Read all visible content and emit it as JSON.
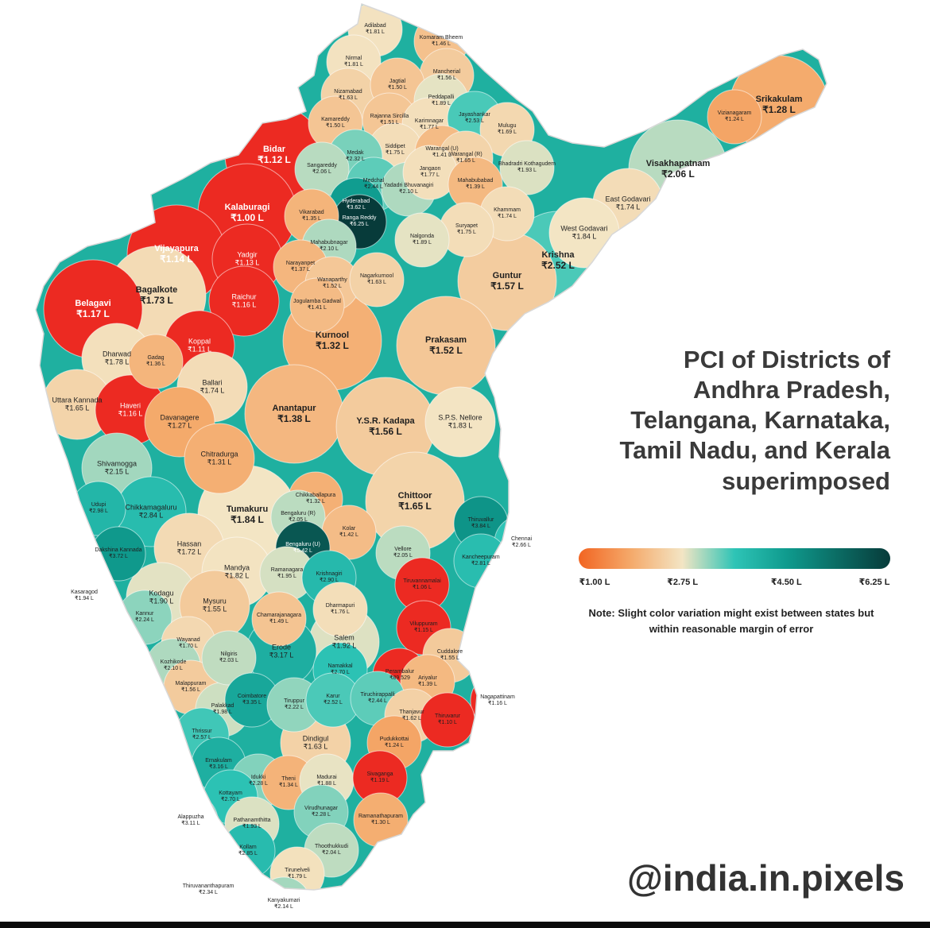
{
  "title_lines": [
    "PCI of Districts of",
    "Andhra Pradesh,",
    "Telangana, Karnataka,",
    "Tamil Nadu, and Kerala",
    "superimposed"
  ],
  "legend": {
    "ticks": [
      "₹1.00 L",
      "₹2.75 L",
      "₹4.50 L",
      "₹6.25 L"
    ],
    "tick_values": [
      1.0,
      2.75,
      4.5,
      6.25
    ],
    "min": 1.0,
    "max": 6.25,
    "colors": [
      "#f26522",
      "#f4a96a",
      "#f3e5c4",
      "#2ec4b6",
      "#0f9b8e",
      "#0b6b63",
      "#073b3a"
    ]
  },
  "note_lines": [
    "Note: Slight color variation might exist between states but",
    "within reasonable margin of error"
  ],
  "handle": "@india.in.pixels",
  "colors": {
    "land_base": "#1fb0a0",
    "outline": "#ffffff",
    "title": "#3a3a3a"
  },
  "districts": [
    {
      "name": "Adilabad",
      "value": "₹1.81 L",
      "pci": 1.81
    },
    {
      "name": "Komaram Bheem",
      "value": "₹1.46 L",
      "pci": 1.46
    },
    {
      "name": "Nirmal",
      "value": "₹1.81 L",
      "pci": 1.81
    },
    {
      "name": "Mancherial",
      "value": "₹1.56 L",
      "pci": 1.56
    },
    {
      "name": "Nizamabad",
      "value": "₹1.63 L",
      "pci": 1.63
    },
    {
      "name": "Jagtial",
      "value": "₹1.50 L",
      "pci": 1.5
    },
    {
      "name": "Peddapalli",
      "value": "₹1.89 L",
      "pci": 1.89
    },
    {
      "name": "Kamareddy",
      "value": "₹1.50 L",
      "pci": 1.5
    },
    {
      "name": "Rajanna Sircilla",
      "value": "₹1.51 L",
      "pci": 1.51
    },
    {
      "name": "Karimnagar",
      "value": "₹1.77 L",
      "pci": 1.77
    },
    {
      "name": "Jayashankar",
      "value": "₹2.53 L",
      "pci": 2.53
    },
    {
      "name": "Mulugu",
      "value": "₹1.69 L",
      "pci": 1.69
    },
    {
      "name": "Siddipet",
      "value": "₹1.75 L",
      "pci": 1.75
    },
    {
      "name": "Warangal (U)",
      "value": "₹1.41 L",
      "pci": 1.41
    },
    {
      "name": "Warangal (R)",
      "value": "₹1.65 L",
      "pci": 1.65
    },
    {
      "name": "Medak",
      "value": "₹2.32 L",
      "pci": 2.32
    },
    {
      "name": "Sangareddy",
      "value": "₹2.06 L",
      "pci": 2.06
    },
    {
      "name": "Bhadradri Kothagudem",
      "value": "₹1.93 L",
      "pci": 1.93
    },
    {
      "name": "Medchal",
      "value": "₹2.44 L",
      "pci": 2.44
    },
    {
      "name": "Yadadri Bhuvanagiri",
      "value": "₹2.10 L",
      "pci": 2.1
    },
    {
      "name": "Jangaon",
      "value": "₹1.77 L",
      "pci": 1.77
    },
    {
      "name": "Mahabubabad",
      "value": "₹1.39 L",
      "pci": 1.39
    },
    {
      "name": "Hyderabad",
      "value": "₹3.62 L",
      "pci": 3.62
    },
    {
      "name": "Ranga Reddy",
      "value": "₹6.25 L",
      "pci": 6.25
    },
    {
      "name": "Vikarabad",
      "value": "₹1.35 L",
      "pci": 1.35
    },
    {
      "name": "Khammam",
      "value": "₹1.74 L",
      "pci": 1.74
    },
    {
      "name": "Suryapet",
      "value": "₹1.75 L",
      "pci": 1.75
    },
    {
      "name": "Nalgonda",
      "value": "₹1.89 L",
      "pci": 1.89
    },
    {
      "name": "Mahabubnagar",
      "value": "₹2.10 L",
      "pci": 2.1
    },
    {
      "name": "Narayanpet",
      "value": "₹1.37 L",
      "pci": 1.37
    },
    {
      "name": "Wanaparthy",
      "value": "₹1.52 L",
      "pci": 1.52
    },
    {
      "name": "Nagarkurnool",
      "value": "₹1.63 L",
      "pci": 1.63
    },
    {
      "name": "Jogulamba Gadwal",
      "value": "₹1.41 L",
      "pci": 1.41
    },
    {
      "name": "Srikakulam",
      "value": "₹1.28 L",
      "pci": 1.28
    },
    {
      "name": "Vizianagaram",
      "value": "₹1.24 L",
      "pci": 1.24
    },
    {
      "name": "Visakhapatnam",
      "value": "₹2.06 L",
      "pci": 2.06
    },
    {
      "name": "East Godavari",
      "value": "₹1.74 L",
      "pci": 1.74
    },
    {
      "name": "West Godavari",
      "value": "₹1.84 L",
      "pci": 1.84
    },
    {
      "name": "Krishna",
      "value": "₹2.52 L",
      "pci": 2.52
    },
    {
      "name": "Guntur",
      "value": "₹1.57 L",
      "pci": 1.57
    },
    {
      "name": "Prakasam",
      "value": "₹1.52 L",
      "pci": 1.52
    },
    {
      "name": "Kurnool",
      "value": "₹1.32 L",
      "pci": 1.32
    },
    {
      "name": "Anantapur",
      "value": "₹1.38 L",
      "pci": 1.38
    },
    {
      "name": "Y.S.R. Kadapa",
      "value": "₹1.56 L",
      "pci": 1.56
    },
    {
      "name": "S.P.S. Nellore",
      "value": "₹1.83 L",
      "pci": 1.83
    },
    {
      "name": "Chittoor",
      "value": "₹1.65 L",
      "pci": 1.65
    },
    {
      "name": "Bidar",
      "value": "₹1.12 L",
      "pci": 1.12
    },
    {
      "name": "Kalaburagi",
      "value": "₹1.00 L",
      "pci": 1.0
    },
    {
      "name": "Vijayapura",
      "value": "₹1.14 L",
      "pci": 1.14
    },
    {
      "name": "Yadgir",
      "value": "₹1.13 L",
      "pci": 1.13
    },
    {
      "name": "Bagalkote",
      "value": "₹1.73 L",
      "pci": 1.73
    },
    {
      "name": "Belagavi",
      "value": "₹1.17 L",
      "pci": 1.17
    },
    {
      "name": "Raichur",
      "value": "₹1.16 L",
      "pci": 1.16
    },
    {
      "name": "Koppal",
      "value": "₹1.11 L",
      "pci": 1.11
    },
    {
      "name": "Dharwad",
      "value": "₹1.78 L",
      "pci": 1.78
    },
    {
      "name": "Gadag",
      "value": "₹1.36 L",
      "pci": 1.36
    },
    {
      "name": "Ballari",
      "value": "₹1.74 L",
      "pci": 1.74
    },
    {
      "name": "Uttara Kannada",
      "value": "₹1.65 L",
      "pci": 1.65
    },
    {
      "name": "Haveri",
      "value": "₹1.16 L",
      "pci": 1.16
    },
    {
      "name": "Davanagere",
      "value": "₹1.27 L",
      "pci": 1.27
    },
    {
      "name": "Chitradurga",
      "value": "₹1.31 L",
      "pci": 1.31
    },
    {
      "name": "Shivamogga",
      "value": "₹2.15 L",
      "pci": 2.15
    },
    {
      "name": "Udupi",
      "value": "₹2.98 L",
      "pci": 2.98
    },
    {
      "name": "Chikkamagaluru",
      "value": "₹2.84 L",
      "pci": 2.84
    },
    {
      "name": "Tumakuru",
      "value": "₹1.84 L",
      "pci": 1.84
    },
    {
      "name": "Chikkaballapura",
      "value": "₹1.32 L",
      "pci": 1.32
    },
    {
      "name": "Bengaluru (R)",
      "value": "₹2.05 L",
      "pci": 2.05
    },
    {
      "name": "Kolar",
      "value": "₹1.42 L",
      "pci": 1.42
    },
    {
      "name": "Bengaluru (U)",
      "value": "₹5.42 L",
      "pci": 5.42
    },
    {
      "name": "Hassan",
      "value": "₹1.72 L",
      "pci": 1.72
    },
    {
      "name": "Dakshina Kannada",
      "value": "₹3.72 L",
      "pci": 3.72
    },
    {
      "name": "Mandya",
      "value": "₹1.82 L",
      "pci": 1.82
    },
    {
      "name": "Ramanagara",
      "value": "₹1.95 L",
      "pci": 1.95
    },
    {
      "name": "Kodagu",
      "value": "₹1.90 L",
      "pci": 1.9
    },
    {
      "name": "Mysuru",
      "value": "₹1.55 L",
      "pci": 1.55
    },
    {
      "name": "Chamarajanagara",
      "value": "₹1.49 L",
      "pci": 1.49
    },
    {
      "name": "Kasaragod",
      "value": "₹1.94 L",
      "pci": 1.94
    },
    {
      "name": "Kannur",
      "value": "₹2.24 L",
      "pci": 2.24
    },
    {
      "name": "Wayanad",
      "value": "₹1.70 L",
      "pci": 1.7
    },
    {
      "name": "Kozhikode",
      "value": "₹2.10 L",
      "pci": 2.1
    },
    {
      "name": "Malappuram",
      "value": "₹1.56 L",
      "pci": 1.56
    },
    {
      "name": "Palakkad",
      "value": "₹1.98 L",
      "pci": 1.98
    },
    {
      "name": "Thrissur",
      "value": "₹2.57 L",
      "pci": 2.57
    },
    {
      "name": "Ernakulam",
      "value": "₹3.16 L",
      "pci": 3.16
    },
    {
      "name": "Idukki",
      "value": "₹2.28 L",
      "pci": 2.28
    },
    {
      "name": "Kottayam",
      "value": "₹2.70 L",
      "pci": 2.7
    },
    {
      "name": "Alappuzha",
      "value": "₹3.11 L",
      "pci": 3.11
    },
    {
      "name": "Pathanamthitta",
      "value": "₹1.93 L",
      "pci": 1.93
    },
    {
      "name": "Kollam",
      "value": "₹2.85 L",
      "pci": 2.85
    },
    {
      "name": "Thiruvananthapuram",
      "value": "₹2.34 L",
      "pci": 2.34
    },
    {
      "name": "Thiruvallur",
      "value": "₹3.84 L",
      "pci": 3.84
    },
    {
      "name": "Chennai",
      "value": "₹2.66 L",
      "pci": 2.66
    },
    {
      "name": "Vellore",
      "value": "₹2.05 L",
      "pci": 2.05
    },
    {
      "name": "Kancheepuram",
      "value": "₹2.81 L",
      "pci": 2.81
    },
    {
      "name": "Krishnagiri",
      "value": "₹2.90 L",
      "pci": 2.9
    },
    {
      "name": "Tiruvannamalai",
      "value": "₹1.06 L",
      "pci": 1.06
    },
    {
      "name": "Dharmapuri",
      "value": "₹1.76 L",
      "pci": 1.76
    },
    {
      "name": "Viluppuram",
      "value": "₹1.15 L",
      "pci": 1.15
    },
    {
      "name": "Salem",
      "value": "₹1.92 L",
      "pci": 1.92
    },
    {
      "name": "Erode",
      "value": "₹3.17 L",
      "pci": 3.17
    },
    {
      "name": "Nilgiris",
      "value": "₹2.03 L",
      "pci": 2.03
    },
    {
      "name": "Cuddalore",
      "value": "₹1.55 L",
      "pci": 1.55
    },
    {
      "name": "Namakkal",
      "value": "₹2.70 L",
      "pci": 2.7
    },
    {
      "name": "Perambalur",
      "value": "₹89,529",
      "pci": 0.9
    },
    {
      "name": "Ariyalur",
      "value": "₹1.39 L",
      "pci": 1.39
    },
    {
      "name": "Coimbatore",
      "value": "₹3.35 L",
      "pci": 3.35
    },
    {
      "name": "Tiruppur",
      "value": "₹2.22 L",
      "pci": 2.22
    },
    {
      "name": "Karur",
      "value": "₹2.52 L",
      "pci": 2.52
    },
    {
      "name": "Tiruchirappalli",
      "value": "₹2.44 L",
      "pci": 2.44
    },
    {
      "name": "Nagapattinam",
      "value": "₹1.16 L",
      "pci": 1.16
    },
    {
      "name": "Thanjavur",
      "value": "₹1.62 L",
      "pci": 1.62
    },
    {
      "name": "Thiruvarur",
      "value": "₹1.10 L",
      "pci": 1.1
    },
    {
      "name": "Dindigul",
      "value": "₹1.63 L",
      "pci": 1.63
    },
    {
      "name": "Pudukkottai",
      "value": "₹1.24 L",
      "pci": 1.24
    },
    {
      "name": "Theni",
      "value": "₹1.34 L",
      "pci": 1.34
    },
    {
      "name": "Madurai",
      "value": "₹1.88 L",
      "pci": 1.88
    },
    {
      "name": "Sivaganga",
      "value": "₹1.19 L",
      "pci": 1.19
    },
    {
      "name": "Virudhunagar",
      "value": "₹2.28 L",
      "pci": 2.28
    },
    {
      "name": "Ramanathapuram",
      "value": "₹1.30 L",
      "pci": 1.3
    },
    {
      "name": "Thoothukkudi",
      "value": "₹2.04 L",
      "pci": 2.04
    },
    {
      "name": "Tirunelveli",
      "value": "₹1.79 L",
      "pci": 1.79
    },
    {
      "name": "Kanyakumari",
      "value": "₹2.14 L",
      "pci": 2.14
    }
  ]
}
